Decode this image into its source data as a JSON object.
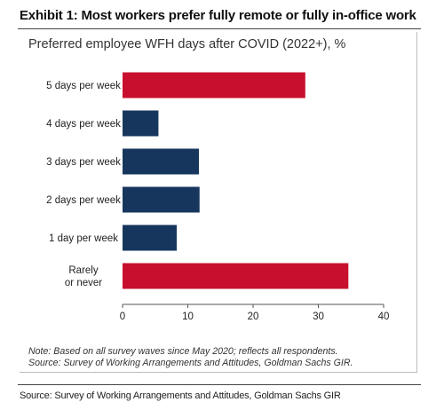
{
  "exhibit": {
    "title": "Exhibit 1: Most workers prefer fully remote or fully in-office work",
    "source": "Source: Survey of Working Arrangements and Attitudes, Goldman Sachs GIR"
  },
  "chart_data": {
    "type": "bar",
    "orientation": "horizontal",
    "title": "Preferred employee WFH days after COVID (2022+), %",
    "categories": [
      "5 days per week",
      "4 days per week",
      "3 days per week",
      "2 days per week",
      "1 day per week",
      "Rarely or never"
    ],
    "category_lines": [
      [
        "5 days per week"
      ],
      [
        "4 days per week"
      ],
      [
        "3 days per week"
      ],
      [
        "2 days per week"
      ],
      [
        "1 day per week"
      ],
      [
        "Rarely",
        "or never"
      ]
    ],
    "values": [
      28.0,
      5.5,
      11.7,
      11.8,
      8.3,
      34.6
    ],
    "colors": [
      "#c8102e",
      "#17365d",
      "#17365d",
      "#17365d",
      "#17365d",
      "#c8102e"
    ],
    "xlim": [
      0,
      40
    ],
    "xticks": [
      0,
      10,
      20,
      30,
      40
    ],
    "grid": false,
    "note_lines": [
      "Note: Based on all survey waves since May 2020; reflects all respondents.",
      "Source: Survey of Working Arrangements and Attitudes, Goldman Sachs GIR."
    ]
  }
}
